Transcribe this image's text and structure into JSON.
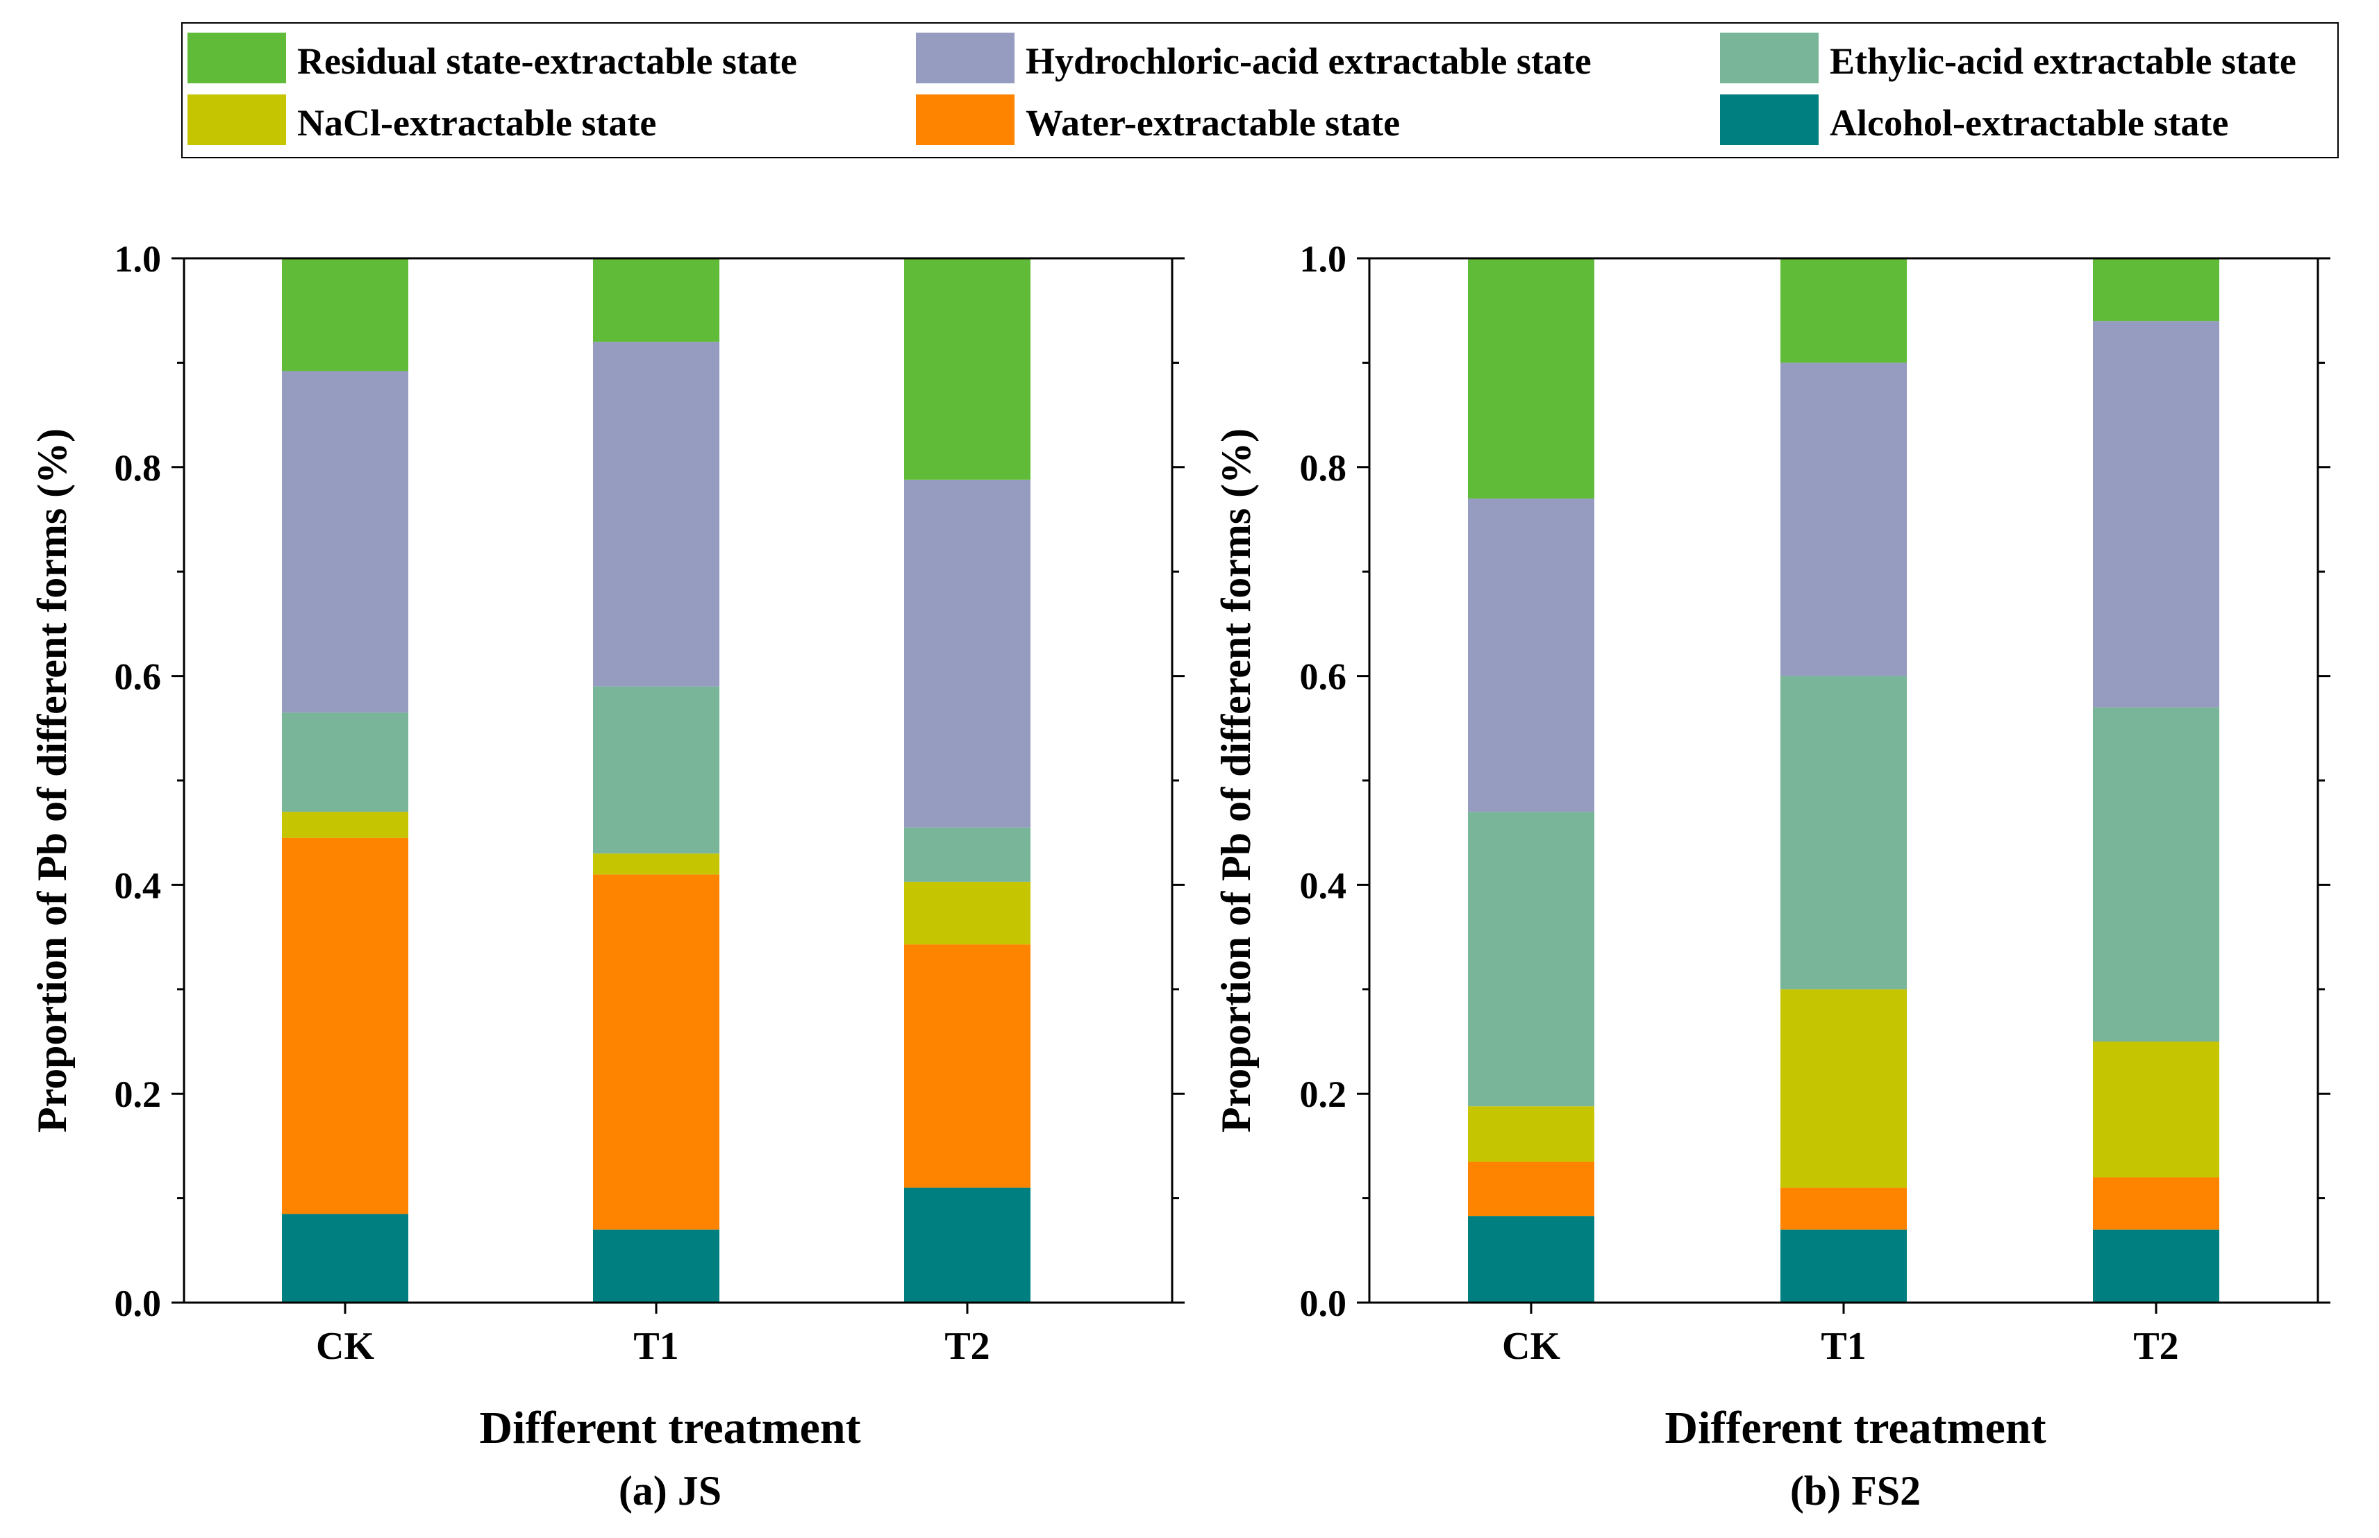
{
  "legend": {
    "items": [
      {
        "label": "Residual state-extractable state",
        "color": "#60BB38"
      },
      {
        "label": "Hydrochloric-acid extractable state",
        "color": "#969BC0"
      },
      {
        "label": "Ethylic-acid extractable state",
        "color": "#79B599"
      },
      {
        "label": "NaCl-extractable state",
        "color": "#C6C502"
      },
      {
        "label": "Water-extractable state",
        "color": "#FE8400"
      },
      {
        "label": "Alcohol-extractable state",
        "color": "#007F80"
      }
    ]
  },
  "chart_data": [
    {
      "type": "bar",
      "stacked": true,
      "title": "(a) JS",
      "xlabel": "Different treatment",
      "ylabel": "Proportion of Pb of different forms (%)",
      "ylim": [
        0,
        1.0
      ],
      "yticks": [
        "0.0",
        "0.2",
        "0.4",
        "0.6",
        "0.8",
        "1.0"
      ],
      "categories": [
        "CK",
        "T1",
        "T2"
      ],
      "series": [
        {
          "name": "Alcohol-extractable state",
          "values": [
            0.085,
            0.07,
            0.11
          ]
        },
        {
          "name": "Water-extractable state",
          "values": [
            0.36,
            0.34,
            0.233
          ]
        },
        {
          "name": "NaCl-extractable state",
          "values": [
            0.025,
            0.02,
            0.06
          ]
        },
        {
          "name": "Ethylic-acid extractable state",
          "values": [
            0.095,
            0.16,
            0.052
          ]
        },
        {
          "name": "Hydrochloric-acid extractable state",
          "values": [
            0.327,
            0.33,
            0.333
          ]
        },
        {
          "name": "Residual state-extractable state",
          "values": [
            0.108,
            0.08,
            0.212
          ]
        }
      ]
    },
    {
      "type": "bar",
      "stacked": true,
      "title": "(b) FS2",
      "xlabel": "Different treatment",
      "ylabel": "Proportion of Pb of different forms (%)",
      "ylim": [
        0,
        1.0
      ],
      "yticks": [
        "0.0",
        "0.2",
        "0.4",
        "0.6",
        "0.8",
        "1.0"
      ],
      "categories": [
        "CK",
        "T1",
        "T2"
      ],
      "series": [
        {
          "name": "Alcohol-extractable state",
          "values": [
            0.083,
            0.07,
            0.07
          ]
        },
        {
          "name": "Water-extractable state",
          "values": [
            0.052,
            0.04,
            0.05
          ]
        },
        {
          "name": "NaCl-extractable state",
          "values": [
            0.053,
            0.19,
            0.13
          ]
        },
        {
          "name": "Ethylic-acid extractable state",
          "values": [
            0.282,
            0.3,
            0.32
          ]
        },
        {
          "name": "Hydrochloric-acid extractable state",
          "values": [
            0.3,
            0.3,
            0.37
          ]
        },
        {
          "name": "Residual state-extractable state",
          "values": [
            0.23,
            0.1,
            0.06
          ]
        }
      ]
    }
  ]
}
